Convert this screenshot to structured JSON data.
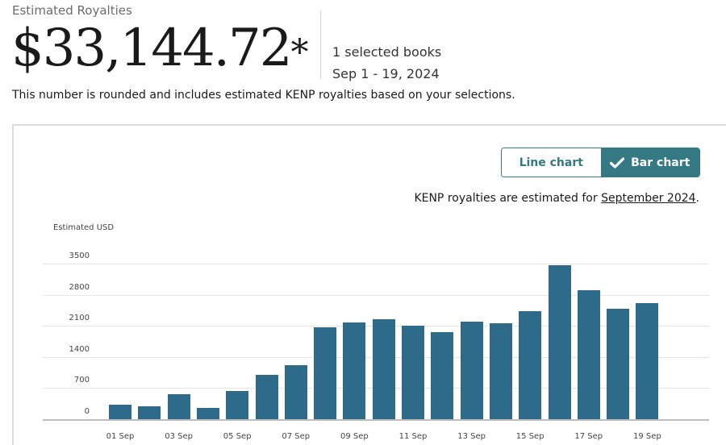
{
  "header": {
    "label": "Estimated Royalties",
    "amount": "$33,144.72",
    "amount_suffix": "*",
    "selected_books": "1 selected books",
    "date_range": "Sep 1 - 19, 2024",
    "note": "This number is rounded and includes estimated KENP royalties based on your selections."
  },
  "toggle": {
    "line_label": "Line chart",
    "bar_label": "Bar chart",
    "active": "bar",
    "accent_color": "#347983"
  },
  "kenp_note": {
    "prefix": "KENP royalties are estimated for ",
    "link": "September 2024",
    "suffix": "."
  },
  "chart_data": {
    "type": "bar",
    "title": "",
    "xlabel": "",
    "ylabel": "Estimated USD",
    "ylim": [
      0,
      3500
    ],
    "yticks": [
      0,
      700,
      1400,
      2100,
      2800,
      3500
    ],
    "grid": true,
    "bar_color": "#2e6a8a",
    "categories": [
      "01 Sep",
      "02 Sep",
      "03 Sep",
      "04 Sep",
      "05 Sep",
      "06 Sep",
      "07 Sep",
      "08 Sep",
      "09 Sep",
      "10 Sep",
      "11 Sep",
      "12 Sep",
      "13 Sep",
      "14 Sep",
      "15 Sep",
      "16 Sep",
      "17 Sep",
      "18 Sep",
      "19 Sep"
    ],
    "x_tick_labels": [
      "01 Sep",
      "03 Sep",
      "05 Sep",
      "07 Sep",
      "09 Sep",
      "11 Sep",
      "13 Sep",
      "15 Sep",
      "17 Sep",
      "19 Sep"
    ],
    "values": [
      330,
      290,
      560,
      255,
      635,
      1000,
      1215,
      2070,
      2180,
      2250,
      2100,
      1960,
      2195,
      2160,
      2430,
      3465,
      2900,
      2485,
      2610
    ]
  }
}
